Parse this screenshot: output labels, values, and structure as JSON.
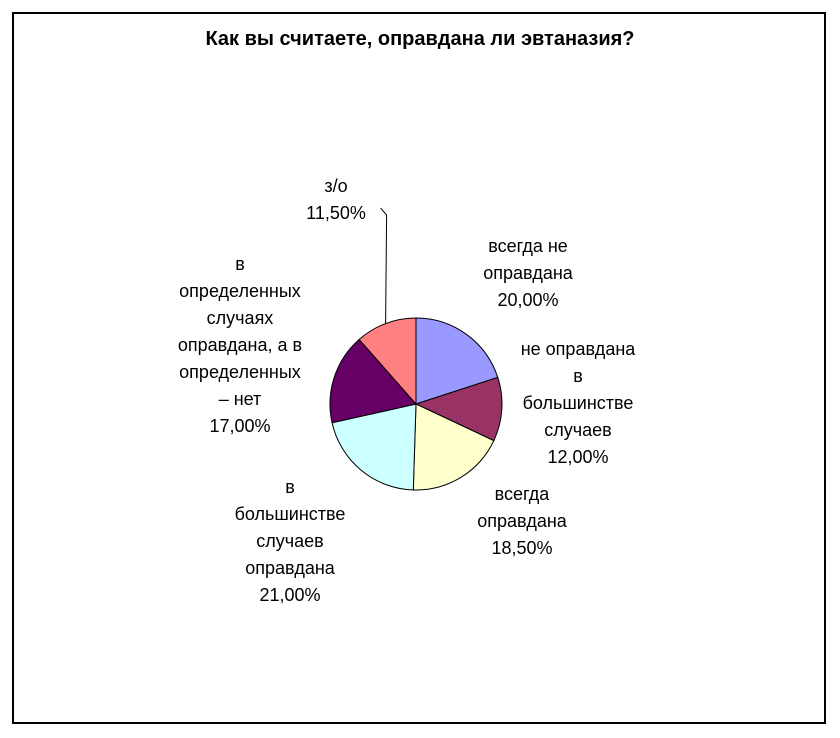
{
  "chart_data": {
    "type": "pie",
    "title": "Как вы считаете, оправдана ли эвтаназия?",
    "slices": [
      {
        "label": "всегда не оправдана",
        "label_lines": [
          "всегда не",
          "оправдана"
        ],
        "value": 20.0,
        "value_label": "20,00%",
        "color": "#9999ff"
      },
      {
        "label": "не оправдана в большинстве случаев",
        "label_lines": [
          "не оправдана",
          "в",
          "большинстве",
          "случаев"
        ],
        "value": 12.0,
        "value_label": "12,00%",
        "color": "#993366"
      },
      {
        "label": "всегда оправдана",
        "label_lines": [
          "всегда",
          "оправдана"
        ],
        "value": 18.5,
        "value_label": "18,50%",
        "color": "#ffffcc"
      },
      {
        "label": "в большинстве случаев оправдана",
        "label_lines": [
          "в",
          "большинстве",
          "случаев",
          "оправдана"
        ],
        "value": 21.0,
        "value_label": "21,00%",
        "color": "#ccffff"
      },
      {
        "label": "в определенных случаях оправдана, а в определенных – нет",
        "label_lines": [
          "в",
          "определенных",
          "случаях",
          "оправдана, а в",
          "определенных",
          "– нет"
        ],
        "value": 17.0,
        "value_label": "17,00%",
        "color": "#660066"
      },
      {
        "label": "з/о",
        "label_lines": [
          "з/о"
        ],
        "value": 11.5,
        "value_label": "11,50%",
        "color": "#ff8080"
      }
    ],
    "start_angle_deg": 0,
    "direction": "clockwise",
    "legend": "none"
  }
}
